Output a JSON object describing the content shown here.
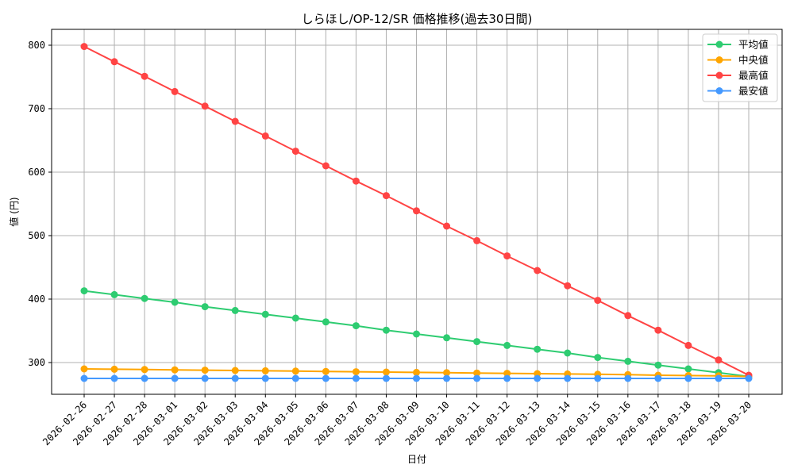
{
  "chart_data": {
    "type": "line",
    "title": "しらほし/OP-12/SR 価格推移(過去30日間)",
    "xlabel": "日付",
    "ylabel": "値 (円)",
    "ylim": [
      250,
      825
    ],
    "yticks": [
      300,
      400,
      500,
      600,
      700,
      800
    ],
    "grid": true,
    "legend_position": "upper right",
    "categories": [
      "2026-02-26",
      "2026-02-27",
      "2026-02-28",
      "2026-03-01",
      "2026-03-02",
      "2026-03-03",
      "2026-03-04",
      "2026-03-05",
      "2026-03-06",
      "2026-03-07",
      "2026-03-08",
      "2026-03-09",
      "2026-03-10",
      "2026-03-11",
      "2026-03-12",
      "2026-03-13",
      "2026-03-14",
      "2026-03-15",
      "2026-03-16",
      "2026-03-17",
      "2026-03-18",
      "2026-03-19",
      "2026-03-20"
    ],
    "series": [
      {
        "name": "平均値",
        "color": "#2ecc71",
        "values": [
          413,
          407,
          401,
          395,
          388,
          382,
          376,
          370,
          364,
          358,
          351,
          345,
          339,
          333,
          327,
          321,
          315,
          308,
          302,
          296,
          290,
          284,
          278
        ]
      },
      {
        "name": "中央値",
        "color": "#ffa500",
        "values": [
          290,
          289.5,
          289,
          288.5,
          288,
          287.5,
          287,
          286.5,
          286,
          285.5,
          285,
          284.5,
          284,
          283.5,
          283,
          282.5,
          282,
          281.5,
          281,
          280,
          279.5,
          279,
          278
        ]
      },
      {
        "name": "最高値",
        "color": "#ff4444",
        "values": [
          798,
          774,
          751,
          727,
          704,
          680,
          657,
          633,
          610,
          586,
          563,
          539,
          515,
          492,
          468,
          445,
          421,
          398,
          374,
          351,
          327,
          304,
          280
        ]
      },
      {
        "name": "最安値",
        "color": "#4499ff",
        "values": [
          275,
          275,
          275,
          275,
          275,
          275,
          275,
          275,
          275,
          275,
          275,
          275,
          275,
          275,
          275,
          275,
          275,
          275,
          275,
          275,
          275,
          275,
          275
        ]
      }
    ]
  }
}
